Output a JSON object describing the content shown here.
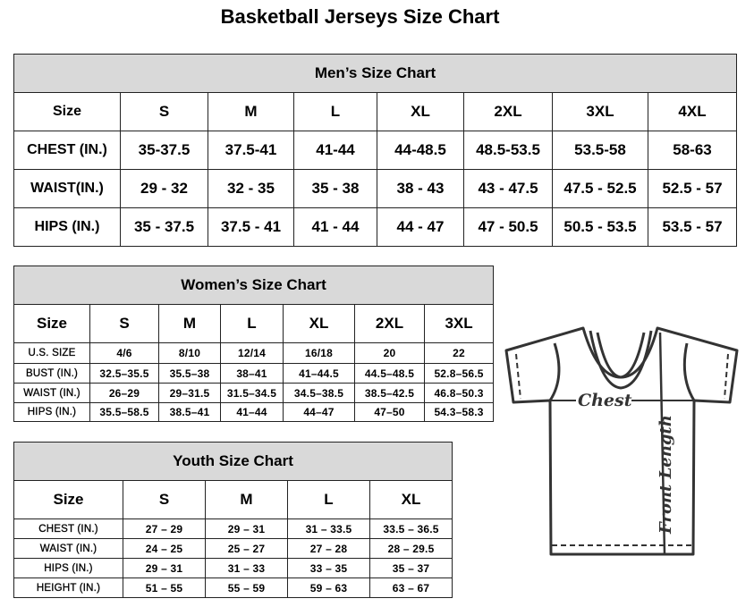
{
  "title": "Basketball Jerseys Size Chart",
  "men": {
    "heading": "Men’s Size Chart",
    "rows": [
      [
        "Size",
        "S",
        "M",
        "L",
        "XL",
        "2XL",
        "3XL",
        "4XL"
      ],
      [
        "CHEST (IN.)",
        "35-37.5",
        "37.5-41",
        "41-44",
        "44-48.5",
        "48.5-53.5",
        "53.5-58",
        "58-63"
      ],
      [
        "WAIST(IN.)",
        "29 - 32",
        "32 - 35",
        "35 - 38",
        "38 - 43",
        "43 - 47.5",
        "47.5 - 52.5",
        "52.5 - 57"
      ],
      [
        "HIPS (IN.)",
        "35 - 37.5",
        "37.5 - 41",
        "41 - 44",
        "44 - 47",
        "47 - 50.5",
        "50.5 - 53.5",
        "53.5 - 57"
      ]
    ]
  },
  "women": {
    "heading": "Women’s Size Chart",
    "rows": [
      [
        "Size",
        "S",
        "M",
        "L",
        "XL",
        "2XL",
        "3XL"
      ],
      [
        "U.S. SIZE",
        "4/6",
        "8/10",
        "12/14",
        "16/18",
        "20",
        "22"
      ],
      [
        "BUST (IN.)",
        "32.5–35.5",
        "35.5–38",
        "38–41",
        "41–44.5",
        "44.5–48.5",
        "52.8–56.5"
      ],
      [
        "WAIST (IN.)",
        "26–29",
        "29–31.5",
        "31.5–34.5",
        "34.5–38.5",
        "38.5–42.5",
        "46.8–50.3"
      ],
      [
        "HIPS (IN.)",
        "35.5–58.5",
        "38.5–41",
        "41–44",
        "44–47",
        "47–50",
        "54.3–58.3"
      ]
    ]
  },
  "youth": {
    "heading": "Youth Size Chart",
    "rows": [
      [
        "Size",
        "S",
        "M",
        "L",
        "XL"
      ],
      [
        "CHEST (IN.)",
        "27 – 29",
        "29 – 31",
        "31 – 33.5",
        "33.5 – 36.5"
      ],
      [
        "WAIST (IN.)",
        "24 – 25",
        "25 – 27",
        "27 – 28",
        "28 – 29.5"
      ],
      [
        "HIPS (IN.)",
        "29 – 31",
        "31 – 33",
        "33 – 35",
        "35 – 37"
      ],
      [
        "HEIGHT (IN.)",
        "51 – 55",
        "55 – 59",
        "59 – 63",
        "63 – 67"
      ]
    ]
  },
  "diagram": {
    "chest_label": "Chest",
    "length_label": "Front Length",
    "icon": "t-shirt-icon"
  }
}
